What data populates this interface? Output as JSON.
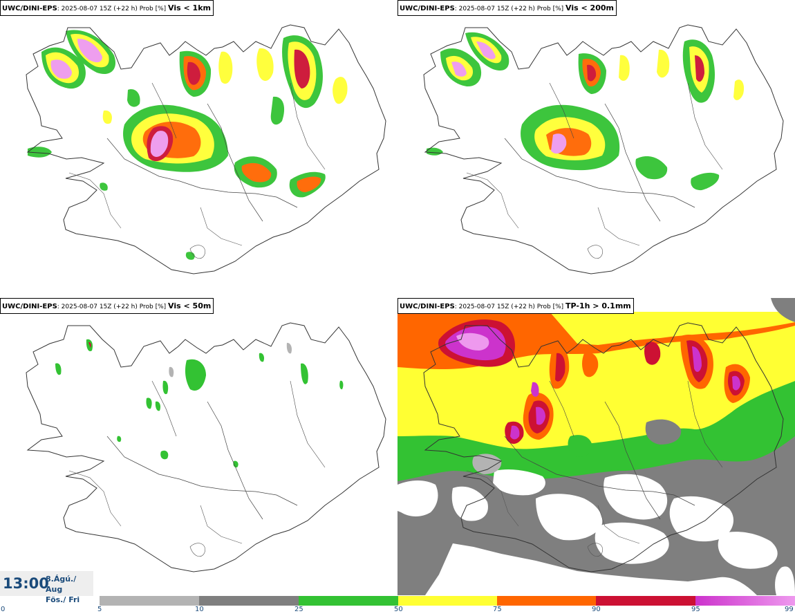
{
  "panels": [
    {
      "source": "UWC/DINI-EPS",
      "meta": ": 2025-08-07 15Z (+22 h) Prob [%] ",
      "variable": "Vis < 1km"
    },
    {
      "source": "UWC/DINI-EPS",
      "meta": ": 2025-08-07 15Z (+22 h) Prob [%] ",
      "variable": "Vis < 200m"
    },
    {
      "source": "UWC/DINI-EPS",
      "meta": ": 2025-08-07 15Z (+22 h) Prob [%] ",
      "variable": "Vis < 50m"
    },
    {
      "source": "UWC/DINI-EPS",
      "meta": ": 2025-08-07 15Z (+22 h) Prob [%] ",
      "variable": "TP-1h > 0.1mm"
    }
  ],
  "timebox": {
    "time": "13:00",
    "date_line1": "8.Ágú./ Aug",
    "date_line2": "Fös./ Fri"
  },
  "legend": {
    "ticks": [
      "0",
      "5",
      "10",
      "25",
      "50",
      "75",
      "90",
      "95",
      "99"
    ],
    "colors": [
      "#ffffff",
      "#b3b3b3",
      "#7f7f7f",
      "#33c233",
      "#ffff33",
      "#ff6600",
      "#cc1133",
      "#cc33cc",
      "#ee99ee"
    ]
  }
}
